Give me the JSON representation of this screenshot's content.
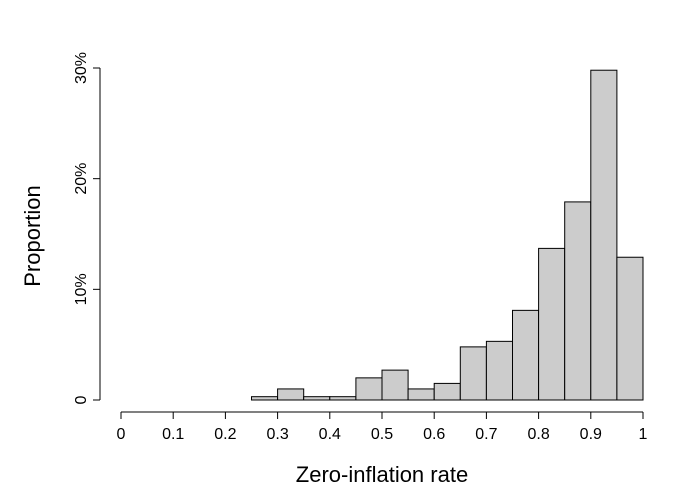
{
  "chart_data": {
    "type": "bar",
    "title": "",
    "xlabel": "Zero-inflation rate",
    "ylabel": "Proportion",
    "xlim": [
      0,
      1
    ],
    "ylim": [
      0,
      0.3
    ],
    "grid": false,
    "bin_width": 0.05,
    "bin_edges": [
      0,
      0.05,
      0.1,
      0.15,
      0.2,
      0.25,
      0.3,
      0.35,
      0.4,
      0.45,
      0.5,
      0.55,
      0.6,
      0.65,
      0.7,
      0.75,
      0.8,
      0.85,
      0.9,
      0.95,
      1.0
    ],
    "values": [
      0,
      0,
      0,
      0,
      0,
      0.003,
      0.01,
      0.003,
      0.003,
      0.02,
      0.027,
      0.01,
      0.015,
      0.048,
      0.053,
      0.081,
      0.137,
      0.179,
      0.298,
      0.129
    ],
    "x_ticks": [
      0,
      0.1,
      0.2,
      0.3,
      0.4,
      0.5,
      0.6,
      0.7,
      0.8,
      0.9,
      1
    ],
    "x_tick_labels": [
      "0",
      "0.1",
      "0.2",
      "0.3",
      "0.4",
      "0.5",
      "0.6",
      "0.7",
      "0.8",
      "0.9",
      "1"
    ],
    "y_ticks": [
      0,
      0.1,
      0.2,
      0.3
    ],
    "y_tick_labels": [
      "0",
      "10%",
      "20%",
      "30%"
    ],
    "colors": {
      "bar_fill": "#cccccc",
      "bar_stroke": "#000000"
    }
  }
}
